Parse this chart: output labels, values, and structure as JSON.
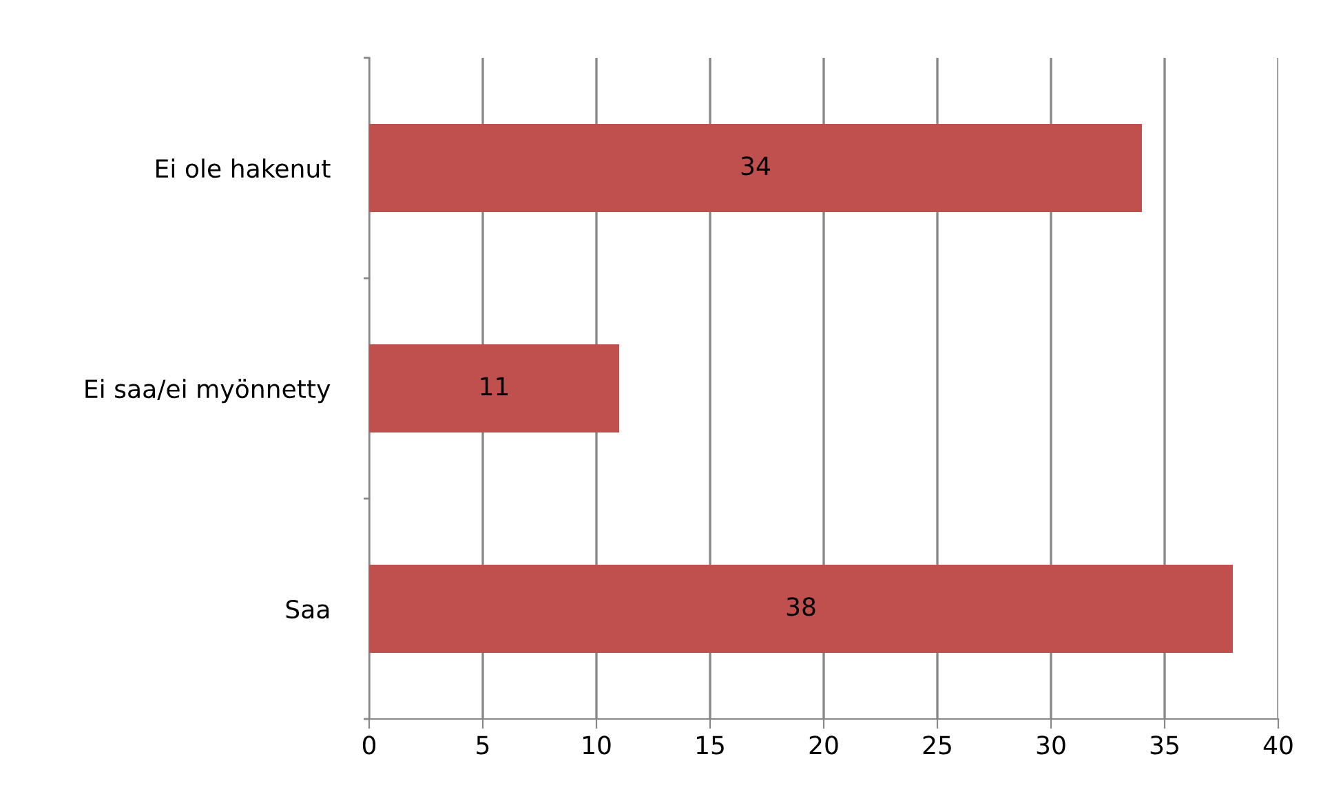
{
  "chart_data": {
    "type": "bar",
    "orientation": "horizontal",
    "categories": [
      "Ei ole hakenut",
      "Ei saa/ei myönnetty",
      "Saa"
    ],
    "values": [
      34,
      11,
      38
    ],
    "color": "#c0504d",
    "xlim": [
      0,
      40
    ],
    "xticks": [
      0,
      5,
      10,
      15,
      20,
      25,
      30,
      35,
      40
    ],
    "grid": "x",
    "data_labels": true
  }
}
